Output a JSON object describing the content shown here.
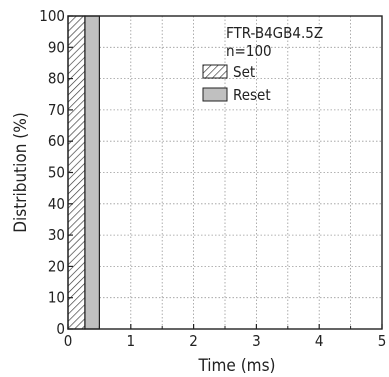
{
  "chart_data": {
    "type": "bar",
    "title": "",
    "xlabel": "Time (ms)",
    "ylabel": "Distribution (%)",
    "xlim": [
      0,
      5
    ],
    "ylim": [
      0,
      100
    ],
    "x_ticks": [
      0,
      1,
      2,
      3,
      4,
      5
    ],
    "y_ticks": [
      0,
      10,
      20,
      30,
      40,
      50,
      60,
      70,
      80,
      90,
      100
    ],
    "grid": true,
    "legend_position": "top-right",
    "annotation": [
      "FTR-B4GB4.5Z",
      "n=100"
    ],
    "series": [
      {
        "name": "Set",
        "pattern": "hatched",
        "x_start": 0.0,
        "x_end": 0.27,
        "value": 100
      },
      {
        "name": "Reset",
        "pattern": "solid",
        "color": "#c0c0c0",
        "x_start": 0.27,
        "x_end": 0.5,
        "value": 100
      }
    ]
  }
}
